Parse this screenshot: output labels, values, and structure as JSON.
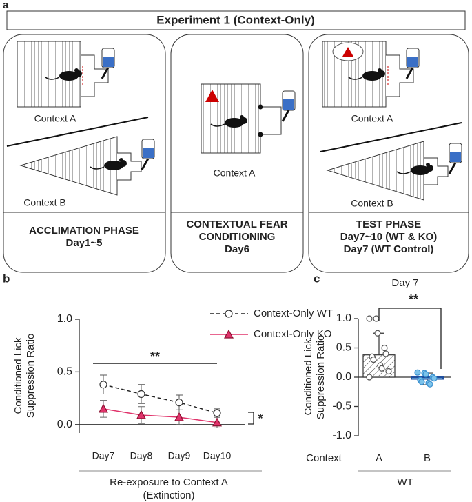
{
  "panel_labels": [
    "a",
    "b",
    "c"
  ],
  "experiment_title": "Experiment 1 (Context-Only)",
  "phases": [
    {
      "contexts": [
        "Context A",
        "Context B"
      ],
      "label_lines": [
        "ACCLIMATION PHASE",
        "Day1~5"
      ]
    },
    {
      "contexts": [
        "Context A"
      ],
      "label_lines": [
        "CONTEXTUAL FEAR",
        "CONDITIONING",
        "Day6"
      ]
    },
    {
      "contexts": [
        "Context A",
        "Context B"
      ],
      "label_lines": [
        "TEST PHASE",
        "Day7~10 (WT & KO)",
        "Day7 (WT Control)"
      ]
    }
  ],
  "chart_data": [
    {
      "type": "line",
      "y_label": [
        "Conditioned Lick",
        "Suppression Ratio"
      ],
      "x_label": [
        "Re-exposure to Context A",
        "(Extinction)"
      ],
      "categories": [
        "Day7",
        "Day8",
        "Day9",
        "Day10"
      ],
      "series": [
        {
          "name": "Context-Only WT",
          "color": "#222222",
          "marker": "circle",
          "dashed": true,
          "values": [
            0.38,
            0.29,
            0.21,
            0.11
          ],
          "errors": [
            0.09,
            0.09,
            0.07,
            0.04
          ]
        },
        {
          "name": "Context-Only KO",
          "color": "#e0336b",
          "marker": "triangle",
          "dashed": false,
          "values": [
            0.15,
            0.09,
            0.07,
            0.02
          ],
          "errors": [
            0.08,
            0.08,
            0.07,
            0.05
          ]
        }
      ],
      "ylim": [
        -0.08,
        1.0
      ],
      "yticks": [
        {
          "value": 0,
          "label": "0.0"
        },
        0.5,
        {
          "value": 1,
          "label": "1.0"
        }
      ],
      "annotations": [
        "**",
        "*"
      ]
    },
    {
      "type": "bar",
      "title": "Day 7",
      "y_label": [
        "Conditioned Lick",
        "Suppression Ratio"
      ],
      "category_axis_label": "Context",
      "x_label": "WT",
      "categories": [
        "A",
        "B"
      ],
      "values": [
        0.38,
        -0.03
      ],
      "errors": [
        0.37,
        0.1
      ],
      "points": [
        [
          1.0,
          1.0,
          0.75,
          0.5,
          0.4,
          0.35,
          0.3,
          0.2,
          0.15,
          0.1,
          0.0
        ],
        [
          0.08,
          0.07,
          0.05,
          0.0,
          -0.02,
          -0.05,
          -0.08,
          -0.1,
          -0.12
        ]
      ],
      "colors": [
        "#ffffff",
        "#7cc3ea"
      ],
      "ylim": [
        -1,
        1
      ],
      "yticks": [
        {
          "value": -1,
          "label": "-1.0"
        },
        -0.5,
        {
          "value": 0,
          "label": "0.0"
        },
        0.5,
        {
          "value": 1,
          "label": "1.0"
        }
      ],
      "annotations": [
        "**"
      ]
    }
  ]
}
